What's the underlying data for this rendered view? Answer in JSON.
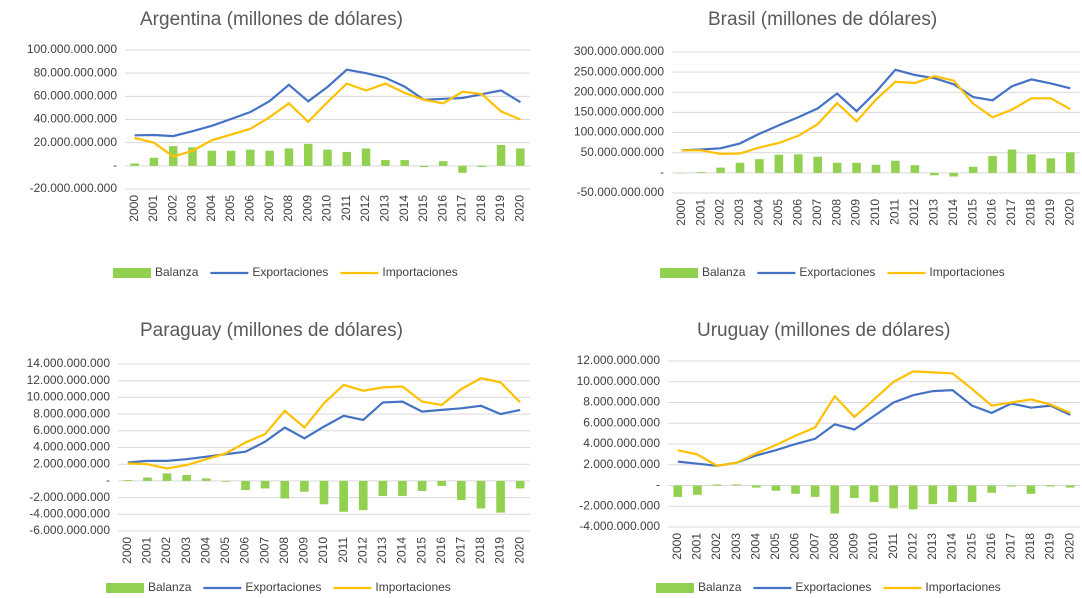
{
  "chart_data": [
    {
      "type": "combo",
      "title": "Argentina (millones de dólares)",
      "legend": "bottom",
      "grid": true,
      "categories": [
        "2000",
        "2001",
        "2002",
        "2003",
        "2004",
        "2005",
        "2006",
        "2007",
        "2008",
        "2009",
        "2010",
        "2011",
        "2012",
        "2013",
        "2014",
        "2015",
        "2016",
        "2017",
        "2018",
        "2019",
        "2020"
      ],
      "ylim": [
        -20000000000.0,
        100000000000.0
      ],
      "yticks": [
        {
          "value": -20000000000.0,
          "label": "-20.000.000.000"
        },
        {
          "value": 0,
          "label": "-"
        },
        {
          "value": 20000000000.0,
          "label": "20.000.000.000"
        },
        {
          "value": 40000000000.0,
          "label": "40.000.000.000"
        },
        {
          "value": 60000000000.0,
          "label": "60.000.000.000"
        },
        {
          "value": 80000000000.0,
          "label": "80.000.000.000"
        },
        {
          "value": 100000000000.0,
          "label": "100.000.000.000"
        }
      ],
      "series": [
        {
          "name": "Balanza",
          "type": "bar",
          "color": "#92d050",
          "values": [
            2000000000.0,
            7000000000.0,
            17000000000.0,
            16000000000.0,
            13000000000.0,
            13000000000.0,
            14000000000.0,
            13000000000.0,
            15000000000.0,
            19000000000.0,
            14000000000.0,
            12000000000.0,
            15000000000.0,
            5000000000.0,
            5000000000.0,
            -1000000000.0,
            4000000000.0,
            -6000000000.0,
            -1000000000.0,
            18000000000.0,
            15000000000.0
          ]
        },
        {
          "name": "Exportaciones",
          "type": "line",
          "color": "#4472c4",
          "values": [
            26400000000.0,
            26600000000.0,
            25700000000.0,
            29900000000.0,
            34600000000.0,
            40400000000.0,
            46500000000.0,
            55900000000.0,
            70000000000.0,
            55700000000.0,
            68100000000.0,
            83000000000.0,
            80000000000.0,
            76000000000.0,
            68400000000.0,
            57000000000.0,
            57900000000.0,
            58600000000.0,
            61800000000.0,
            65100000000.0,
            54900000000.0
          ]
        },
        {
          "name": "Importaciones",
          "type": "line",
          "color": "#ffc000",
          "values": [
            24000000000.0,
            20000000000.0,
            8000000000.0,
            13000000000.0,
            22000000000.0,
            27000000000.0,
            32000000000.0,
            42000000000.0,
            54000000000.0,
            38000000000.0,
            55000000000.0,
            71000000000.0,
            65000000000.0,
            71000000000.0,
            63000000000.0,
            57000000000.0,
            54000000000.0,
            64000000000.0,
            62000000000.0,
            47000000000.0,
            40000000000.0
          ]
        }
      ]
    },
    {
      "type": "combo",
      "title": "Brasil (millones de dólares)",
      "legend": "bottom",
      "grid": true,
      "categories": [
        "2000",
        "2001",
        "2002",
        "2003",
        "2004",
        "2005",
        "2006",
        "2007",
        "2008",
        "2009",
        "2010",
        "2011",
        "2012",
        "2013",
        "2014",
        "2015",
        "2016",
        "2017",
        "2018",
        "2019",
        "2020"
      ],
      "ylim": [
        -50000000000.0,
        300000000000.0
      ],
      "yticks": [
        {
          "value": -50000000000.0,
          "label": "-50.000.000.000"
        },
        {
          "value": 0,
          "label": "-"
        },
        {
          "value": 50000000000.0,
          "label": "50.000.000.000"
        },
        {
          "value": 100000000000.0,
          "label": "100.000.000.000"
        },
        {
          "value": 150000000000.0,
          "label": "150.000.000.000"
        },
        {
          "value": 200000000000.0,
          "label": "200.000.000.000"
        },
        {
          "value": 250000000000.0,
          "label": "250.000.000.000"
        },
        {
          "value": 300000000000.0,
          "label": "300.000.000.000"
        }
      ],
      "series": [
        {
          "name": "Balanza",
          "type": "bar",
          "color": "#92d050",
          "values": [
            -1000000000.0,
            2000000000.0,
            13000000000.0,
            25000000000.0,
            34000000000.0,
            45000000000.0,
            46000000000.0,
            40000000000.0,
            25000000000.0,
            25000000000.0,
            20000000000.0,
            30000000000.0,
            19000000000.0,
            -6000000000.0,
            -9000000000.0,
            15000000000.0,
            42000000000.0,
            58000000000.0,
            46000000000.0,
            36000000000.0,
            51000000000.0
          ]
        },
        {
          "name": "Exportaciones",
          "type": "line",
          "color": "#4472c4",
          "values": [
            56000000000.0,
            58000000000.0,
            61000000000.0,
            73000000000.0,
            97000000000.0,
            118000000000.0,
            138000000000.0,
            160000000000.0,
            197000000000.0,
            153000000000.0,
            201000000000.0,
            256000000000.0,
            243000000000.0,
            235000000000.0,
            220000000000.0,
            188000000000.0,
            180000000000.0,
            215000000000.0,
            232000000000.0,
            222000000000.0,
            210000000000.0
          ]
        },
        {
          "name": "Importaciones",
          "type": "line",
          "color": "#ffc000",
          "values": [
            56000000000.0,
            56000000000.0,
            47000000000.0,
            48000000000.0,
            63000000000.0,
            74000000000.0,
            92000000000.0,
            121000000000.0,
            173000000000.0,
            128000000000.0,
            182000000000.0,
            226000000000.0,
            223000000000.0,
            240000000000.0,
            229000000000.0,
            172000000000.0,
            138000000000.0,
            157000000000.0,
            185000000000.0,
            185000000000.0,
            158000000000.0
          ]
        }
      ]
    },
    {
      "type": "combo",
      "title": "Paraguay (millones de dólares)",
      "legend": "bottom",
      "grid": true,
      "categories": [
        "2000",
        "2001",
        "2002",
        "2003",
        "2004",
        "2005",
        "2006",
        "2007",
        "2008",
        "2009",
        "2010",
        "2011",
        "2012",
        "2013",
        "2014",
        "2015",
        "2016",
        "2017",
        "2018",
        "2019",
        "2020"
      ],
      "ylim": [
        -6000000000.0,
        14000000000.0
      ],
      "yticks": [
        {
          "value": -6000000000.0,
          "label": "-6.000.000.000"
        },
        {
          "value": -4000000000.0,
          "label": "-4.000.000.000"
        },
        {
          "value": -2000000000.0,
          "label": "-2.000.000.000"
        },
        {
          "value": 0,
          "label": "-"
        },
        {
          "value": 2000000000.0,
          "label": "2.000.000.000"
        },
        {
          "value": 4000000000.0,
          "label": "4.000.000.000"
        },
        {
          "value": 6000000000.0,
          "label": "6.000.000.000"
        },
        {
          "value": 8000000000.0,
          "label": "8.000.000.000"
        },
        {
          "value": 10000000000.0,
          "label": "10.000.000.000"
        },
        {
          "value": 12000000000.0,
          "label": "12.000.000.000"
        },
        {
          "value": 14000000000.0,
          "label": "14.000.000.000"
        }
      ],
      "series": [
        {
          "name": "Balanza",
          "type": "bar",
          "color": "#92d050",
          "values": [
            100000000.0,
            400000000.0,
            900000000.0,
            700000000.0,
            300000000.0,
            -100000000.0,
            -1100000000.0,
            -900000000.0,
            -2100000000.0,
            -1300000000.0,
            -2800000000.0,
            -3700000000.0,
            -3500000000.0,
            -1800000000.0,
            -1800000000.0,
            -1200000000.0,
            -600000000.0,
            -2300000000.0,
            -3300000000.0,
            -3800000000.0,
            -900000000.0
          ]
        },
        {
          "name": "Exportaciones",
          "type": "line",
          "color": "#4472c4",
          "values": [
            2200000000.0,
            2400000000.0,
            2400000000.0,
            2600000000.0,
            2900000000.0,
            3200000000.0,
            3500000000.0,
            4700000000.0,
            6400000000.0,
            5100000000.0,
            6500000000.0,
            7800000000.0,
            7300000000.0,
            9400000000.0,
            9500000000.0,
            8300000000.0,
            8500000000.0,
            8700000000.0,
            9000000000.0,
            8000000000.0,
            8500000000.0
          ]
        },
        {
          "name": "Importaciones",
          "type": "line",
          "color": "#ffc000",
          "values": [
            2100000000.0,
            2000000000.0,
            1500000000.0,
            1900000000.0,
            2600000000.0,
            3300000000.0,
            4600000000.0,
            5600000000.0,
            8400000000.0,
            6400000000.0,
            9300000000.0,
            11500000000.0,
            10800000000.0,
            11200000000.0,
            11300000000.0,
            9500000000.0,
            9100000000.0,
            11000000000.0,
            12300000000.0,
            11800000000.0,
            9400000000.0
          ]
        }
      ]
    },
    {
      "type": "combo",
      "title": "Uruguay (millones de dólares)",
      "legend": "bottom",
      "grid": true,
      "categories": [
        "2000",
        "2001",
        "2002",
        "2003",
        "2004",
        "2005",
        "2006",
        "2007",
        "2008",
        "2009",
        "2010",
        "2011",
        "2012",
        "2013",
        "2014",
        "2015",
        "2016",
        "2017",
        "2018",
        "2019",
        "2020"
      ],
      "ylim": [
        -4000000000.0,
        12000000000.0
      ],
      "yticks": [
        {
          "value": -4000000000.0,
          "label": "-4.000.000.000"
        },
        {
          "value": -2000000000.0,
          "label": "-2.000.000.000"
        },
        {
          "value": 0,
          "label": "-"
        },
        {
          "value": 2000000000.0,
          "label": "2.000.000.000"
        },
        {
          "value": 4000000000.0,
          "label": "4.000.000.000"
        },
        {
          "value": 6000000000.0,
          "label": "6.000.000.000"
        },
        {
          "value": 8000000000.0,
          "label": "8.000.000.000"
        },
        {
          "value": 10000000000.0,
          "label": "10.000.000.000"
        },
        {
          "value": 12000000000.0,
          "label": "12.000.000.000"
        }
      ],
      "series": [
        {
          "name": "Balanza",
          "type": "bar",
          "color": "#92d050",
          "values": [
            -1100000000.0,
            -900000000.0,
            100000000.0,
            100000000.0,
            -200000000.0,
            -500000000.0,
            -800000000.0,
            -1100000000.0,
            -2700000000.0,
            -1200000000.0,
            -1600000000.0,
            -2200000000.0,
            -2300000000.0,
            -1800000000.0,
            -1600000000.0,
            -1600000000.0,
            -700000000.0,
            -100000000.0,
            -800000000.0,
            -100000000.0,
            -200000000.0
          ]
        },
        {
          "name": "Exportaciones",
          "type": "line",
          "color": "#4472c4",
          "values": [
            2300000000.0,
            2100000000.0,
            1900000000.0,
            2200000000.0,
            2900000000.0,
            3400000000.0,
            4000000000.0,
            4500000000.0,
            5900000000.0,
            5400000000.0,
            6700000000.0,
            8000000000.0,
            8700000000.0,
            9100000000.0,
            9200000000.0,
            7700000000.0,
            7000000000.0,
            7900000000.0,
            7500000000.0,
            7700000000.0,
            6800000000.0
          ]
        },
        {
          "name": "Importaciones",
          "type": "line",
          "color": "#ffc000",
          "values": [
            3400000000.0,
            3000000000.0,
            1900000000.0,
            2200000000.0,
            3100000000.0,
            3900000000.0,
            4800000000.0,
            5600000000.0,
            8600000000.0,
            6600000000.0,
            8300000000.0,
            10000000000.0,
            11000000000.0,
            10900000000.0,
            10800000000.0,
            9300000000.0,
            7700000000.0,
            8000000000.0,
            8300000000.0,
            7800000000.0,
            7000000000.0
          ]
        }
      ]
    }
  ]
}
